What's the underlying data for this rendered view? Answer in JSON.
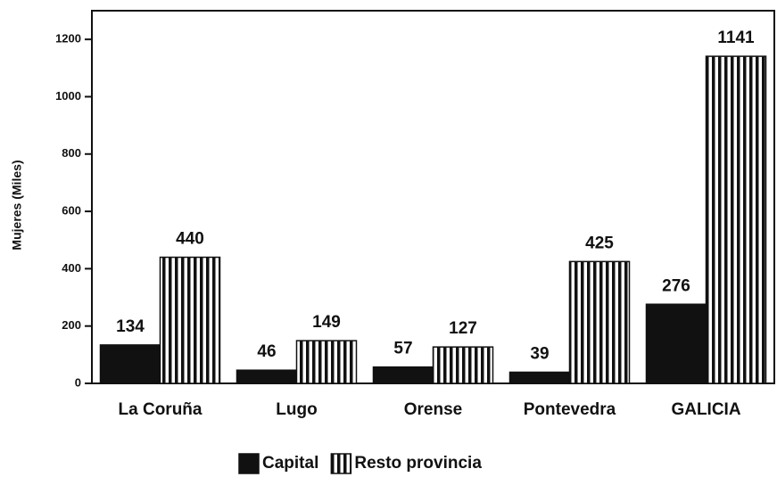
{
  "chart_data": {
    "type": "bar",
    "y_label": "Mujeres (Miles)",
    "categories": [
      "La Coruña",
      "Lugo",
      "Orense",
      "Pontevedra",
      "GALICIA"
    ],
    "series": [
      {
        "name": "Capital",
        "color": "#111111",
        "fill": "solid",
        "values": [
          134,
          46,
          57,
          39,
          276
        ]
      },
      {
        "name": "Resto provincia",
        "color": "#111111",
        "fill": "vertical-stripes",
        "values": [
          440,
          149,
          127,
          425,
          1141
        ]
      }
    ],
    "ylim": [
      0,
      1300
    ],
    "yticks": [
      0,
      200,
      400,
      600,
      800,
      1000,
      1200
    ],
    "legend": "bottom"
  }
}
